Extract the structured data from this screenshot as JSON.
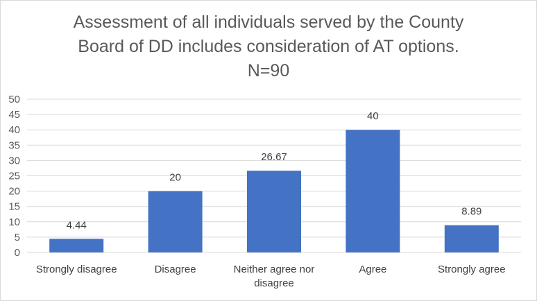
{
  "chart_data": {
    "type": "bar",
    "title_lines": [
      "Assessment of all individuals served by the County",
      "Board of DD includes consideration of AT options.",
      "N=90"
    ],
    "categories": [
      [
        "Strongly disagree"
      ],
      [
        "Disagree"
      ],
      [
        "Neither agree nor",
        "disagree"
      ],
      [
        "Agree"
      ],
      [
        "Strongly agree"
      ]
    ],
    "values": [
      4.44,
      20,
      26.67,
      40,
      8.89
    ],
    "data_labels": [
      "4.44",
      "20",
      "26.67",
      "40",
      "8.89"
    ],
    "ylim": [
      0,
      50
    ],
    "yticks": [
      0,
      5,
      10,
      15,
      20,
      25,
      30,
      35,
      40,
      45,
      50
    ],
    "grid": true,
    "bar_color": "#4472c4",
    "grid_color": "#d9d9d9"
  }
}
